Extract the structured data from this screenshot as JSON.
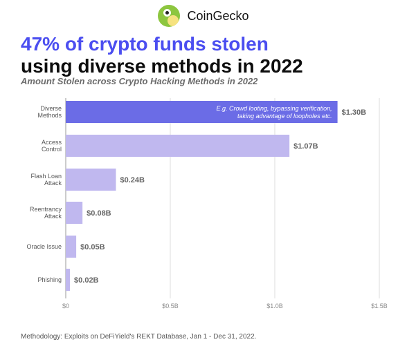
{
  "brand": {
    "name": "CoinGecko",
    "logo_icon": "gecko-logo-icon"
  },
  "title_line1": "47% of crypto funds stolen",
  "title_line2": "using diverse methods in 2022",
  "subtitle": "Amount Stolen across Crypto Hacking Methods in 2022",
  "footer": "Methodology: Exploits on DeFiYield's REKT Database, Jan 1 - Dec 31, 2022.",
  "colors": {
    "title_accent": "#4b4ef0",
    "highlight_bar": "#6b6ce6",
    "bar": "#c0b8ef"
  },
  "chart_data": {
    "type": "bar",
    "orientation": "horizontal",
    "categories": [
      [
        "Diverse",
        "Methods"
      ],
      [
        "Access",
        "Control"
      ],
      [
        "Flash Loan",
        "Attack"
      ],
      [
        "Reentrancy",
        "Attack"
      ],
      [
        "Oracle Issue"
      ],
      [
        "Phishing"
      ]
    ],
    "values": [
      1.3,
      1.07,
      0.24,
      0.08,
      0.05,
      0.02
    ],
    "value_labels": [
      "$1.30B",
      "$1.07B",
      "$0.24B",
      "$0.08B",
      "$0.05B",
      "$0.02B"
    ],
    "highlight_index": 0,
    "annotation": [
      "E.g. Crowd looting, bypassing verification,",
      "taking advantage of loopholes etc."
    ],
    "xlim": [
      0,
      1.5
    ],
    "xticks": [
      0,
      0.5,
      1.0,
      1.5
    ],
    "xtick_labels": [
      "$0",
      "$0.5B",
      "$1.0B",
      "$1.5B"
    ],
    "grid": true
  }
}
